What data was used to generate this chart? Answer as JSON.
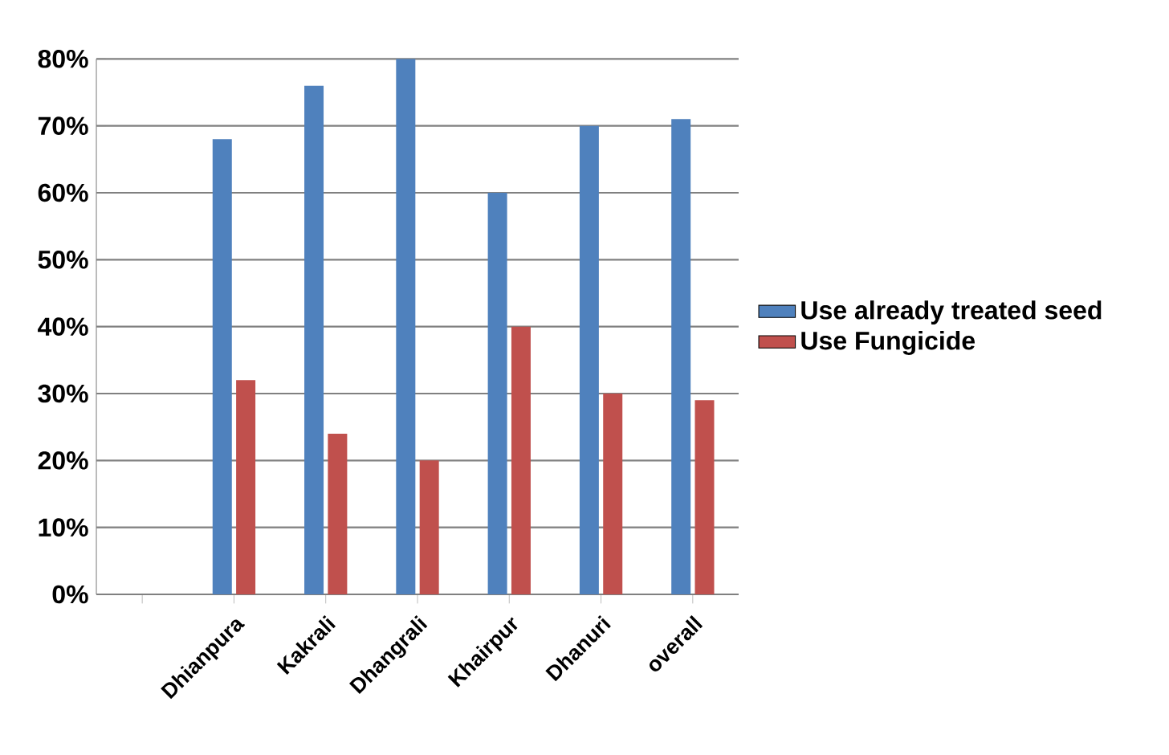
{
  "chart_data": {
    "type": "bar",
    "categories": [
      null,
      "Dhianpura",
      "Kakrali",
      "Dhangrali",
      "Khairpur",
      "Dhanuri",
      "overall"
    ],
    "series": [
      {
        "name": "Use already treated seed",
        "color": "#4f81bd",
        "values": [
          null,
          68,
          76,
          80,
          60,
          70,
          71
        ]
      },
      {
        "name": "Use Fungicide",
        "color": "#c0504d",
        "values": [
          null,
          32,
          24,
          20,
          40,
          30,
          29
        ]
      }
    ],
    "ylim": [
      0,
      80
    ],
    "yticks": [
      {
        "value": 0,
        "label": "0%"
      },
      {
        "value": 10,
        "label": "10%"
      },
      {
        "value": 20,
        "label": "20%"
      },
      {
        "value": 30,
        "label": "30%"
      },
      {
        "value": 40,
        "label": "40%"
      },
      {
        "value": 50,
        "label": "50%"
      },
      {
        "value": 60,
        "label": "60%"
      },
      {
        "value": 70,
        "label": "70%"
      },
      {
        "value": 80,
        "label": "80%"
      }
    ],
    "grid": "y",
    "legend": "right"
  }
}
